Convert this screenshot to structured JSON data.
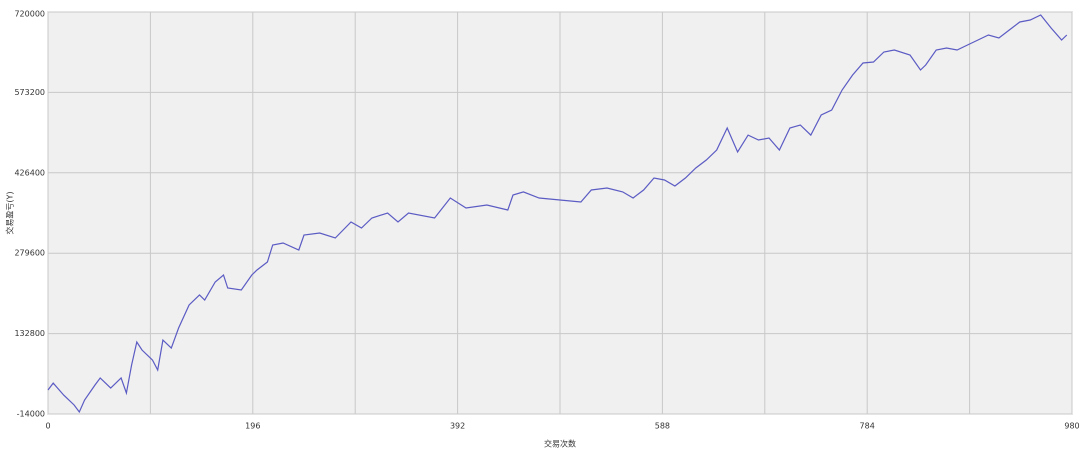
{
  "chart_data": {
    "type": "line",
    "x_label": "交易次数",
    "y_label": "交易盈亏(Y)",
    "x": [
      0,
      5,
      15,
      25,
      30,
      35,
      45,
      50,
      60,
      70,
      75,
      80,
      85,
      90,
      100,
      105,
      110,
      118,
      125,
      135,
      145,
      150,
      160,
      168,
      172,
      185,
      195,
      200,
      210,
      215,
      225,
      240,
      245,
      260,
      275,
      290,
      300,
      310,
      325,
      335,
      345,
      370,
      385,
      400,
      420,
      440,
      445,
      455,
      470,
      490,
      510,
      520,
      535,
      550,
      560,
      570,
      580,
      590,
      600,
      610,
      620,
      630,
      640,
      650,
      660,
      670,
      680,
      690,
      700,
      710,
      720,
      730,
      740,
      750,
      760,
      770,
      780,
      790,
      800,
      810,
      825,
      835,
      840,
      850,
      860,
      870,
      880,
      890,
      900,
      910,
      920,
      930,
      940,
      950,
      960,
      970,
      975
    ],
    "series": [
      {
        "name": "交易盈亏",
        "color": "#5b5bc4",
        "values": [
          29760,
          42500,
          20600,
          2400,
          -10400,
          11500,
          38900,
          51700,
          33400,
          51700,
          24300,
          75400,
          117400,
          102800,
          84500,
          66300,
          121000,
          106400,
          143000,
          185000,
          203300,
          194100,
          227000,
          239800,
          216000,
          212400,
          239800,
          248900,
          263500,
          294500,
          298200,
          285400,
          312800,
          316500,
          307300,
          336500,
          325600,
          343800,
          353000,
          336500,
          353000,
          343800,
          380400,
          362100,
          367600,
          358500,
          385800,
          391600,
          380400,
          376700,
          373100,
          395000,
          398600,
          391600,
          380400,
          395000,
          416900,
          413200,
          402300,
          416900,
          435100,
          449700,
          468000,
          508200,
          464300,
          495300,
          486200,
          489900,
          468000,
          508200,
          513700,
          495300,
          531900,
          541000,
          577500,
          604900,
          626900,
          628700,
          646900,
          650600,
          641500,
          614100,
          623300,
          650600,
          654200,
          650600,
          659800,
          668900,
          678000,
          672600,
          687200,
          701700,
          705400,
          714500,
          690700,
          668900,
          678000
        ]
      }
    ],
    "xlim": [
      0,
      980
    ],
    "xticks": [
      0,
      196,
      392,
      588,
      784,
      980
    ],
    "x_minor_ticks": [
      98,
      294,
      490,
      686,
      882
    ],
    "ylim": [
      -14000,
      720000
    ],
    "yticks": [
      -14000,
      132800,
      279600,
      426400,
      573200,
      720000
    ],
    "grid": true
  }
}
